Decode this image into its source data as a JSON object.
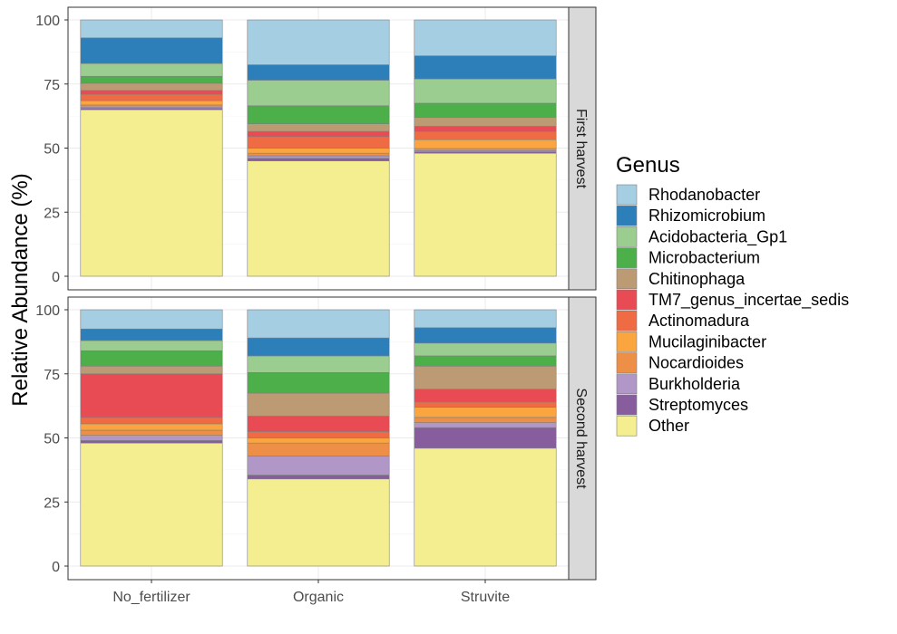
{
  "chart_data": {
    "type": "bar",
    "stacked": true,
    "faceted": "rows",
    "ylabel": "Relative Abundance (%)",
    "xlabel": "",
    "ylim": [
      0,
      100
    ],
    "yticks": [
      0,
      25,
      50,
      75,
      100
    ],
    "categories": [
      "No_fertilizer",
      "Organic",
      "Struvite"
    ],
    "legend_title": "Genus",
    "legend_position": "right",
    "grid": true,
    "genera": [
      {
        "name": "Rhodanobacter",
        "color": "#A6CEE3"
      },
      {
        "name": "Rhizomicrobium",
        "color": "#2C7FB8"
      },
      {
        "name": "Acidobacteria_Gp1",
        "color": "#9ACD8F"
      },
      {
        "name": "Microbacterium",
        "color": "#4DAF4A"
      },
      {
        "name": "Chitinophaga",
        "color": "#BC9B74"
      },
      {
        "name": "TM7_genus_incertae_sedis",
        "color": "#E94B54"
      },
      {
        "name": "Actinomadura",
        "color": "#EF6B43"
      },
      {
        "name": "Mucilaginibacter",
        "color": "#FBA541"
      },
      {
        "name": "Nocardioides",
        "color": "#EE8F48"
      },
      {
        "name": "Burkholderia",
        "color": "#B196C8"
      },
      {
        "name": "Streptomyces",
        "color": "#875D9E"
      },
      {
        "name": "Other",
        "color": "#F5EE90"
      }
    ],
    "panels": [
      {
        "label": "First harvest",
        "values": {
          "No_fertilizer": {
            "Other": 65.0,
            "Streptomyces": 0.5,
            "Burkholderia": 0.5,
            "Nocardioides": 0.8,
            "Mucilaginibacter": 1.7,
            "Actinomadura": 2.5,
            "TM7_genus_incertae_sedis": 1.5,
            "Chitinophaga": 2.8,
            "Microbacterium": 2.7,
            "Acidobacteria_Gp1": 5.0,
            "Rhizomicrobium": 10.0,
            "Rhodanobacter": 7.0
          },
          "Organic": {
            "Other": 45.0,
            "Streptomyces": 1.0,
            "Burkholderia": 1.0,
            "Nocardioides": 1.0,
            "Mucilaginibacter": 2.0,
            "Actinomadura": 4.5,
            "TM7_genus_incertae_sedis": 2.0,
            "Chitinophaga": 3.0,
            "Microbacterium": 7.0,
            "Acidobacteria_Gp1": 10.0,
            "Rhizomicrobium": 6.0,
            "Rhodanobacter": 17.5
          },
          "Struvite": {
            "Other": 48.0,
            "Streptomyces": 0.5,
            "Burkholderia": 0.5,
            "Nocardioides": 0.8,
            "Mucilaginibacter": 3.5,
            "Actinomadura": 3.2,
            "TM7_genus_incertae_sedis": 2.0,
            "Chitinophaga": 3.5,
            "Microbacterium": 5.5,
            "Acidobacteria_Gp1": 9.5,
            "Rhizomicrobium": 9.0,
            "Rhodanobacter": 14.0
          }
        }
      },
      {
        "label": "Second harvest",
        "values": {
          "No_fertilizer": {
            "Other": 48.0,
            "Streptomyces": 1.0,
            "Burkholderia": 2.0,
            "Nocardioides": 2.0,
            "Mucilaginibacter": 2.5,
            "Actinomadura": 2.5,
            "TM7_genus_incertae_sedis": 17.0,
            "Chitinophaga": 3.0,
            "Microbacterium": 6.0,
            "Acidobacteria_Gp1": 4.0,
            "Rhizomicrobium": 4.5,
            "Rhodanobacter": 7.5
          },
          "Organic": {
            "Other": 34.0,
            "Streptomyces": 1.5,
            "Burkholderia": 7.5,
            "Nocardioides": 5.0,
            "Mucilaginibacter": 2.0,
            "Actinomadura": 2.5,
            "TM7_genus_incertae_sedis": 6.0,
            "Chitinophaga": 9.0,
            "Microbacterium": 8.0,
            "Acidobacteria_Gp1": 6.5,
            "Rhizomicrobium": 7.0,
            "Rhodanobacter": 11.0
          }
        },
        "values_struvite": {}
      }
    ]
  }
}
